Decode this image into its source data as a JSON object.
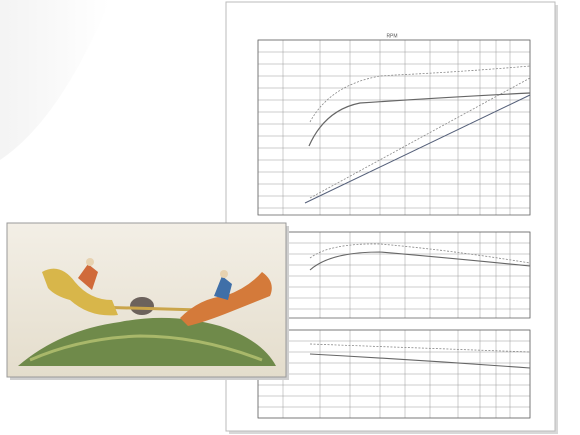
{
  "chart_sheet": {
    "top_axis_label": "RPM"
  }
}
